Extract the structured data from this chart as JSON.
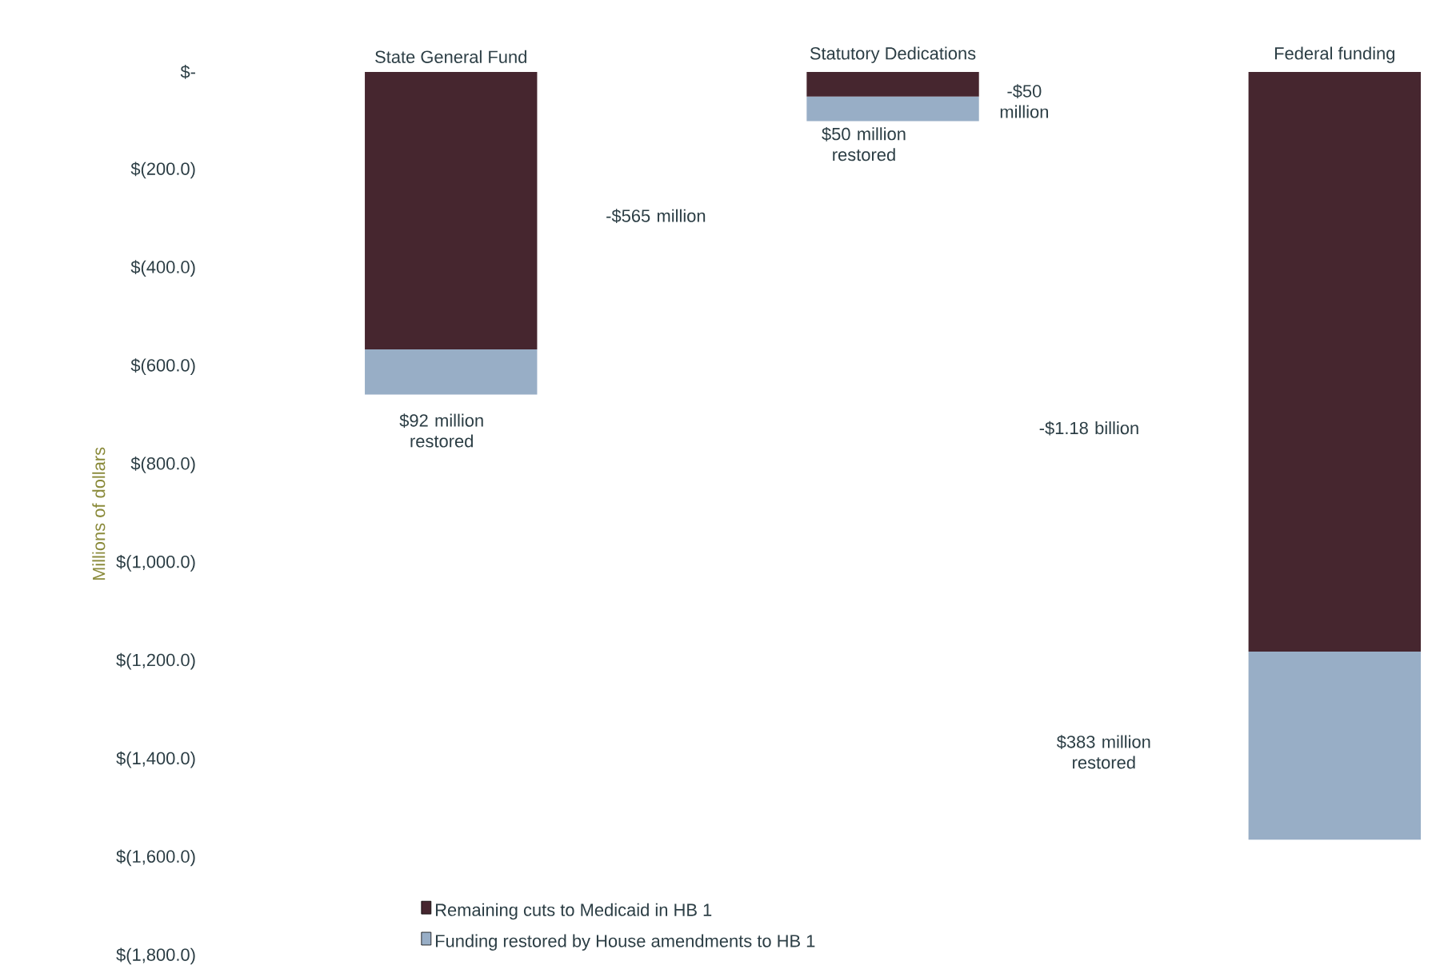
{
  "chart_data": {
    "type": "bar",
    "stacked": true,
    "ylabel": "Millions of dollars",
    "categories": [
      "State General Fund",
      "Statutory Dedications",
      "Federal funding"
    ],
    "series": [
      {
        "name": "Remaining cuts to Medicaid in HB 1",
        "color": "#46262f",
        "values": [
          -565,
          -50,
          -1180
        ]
      },
      {
        "name": "Funding restored by House amendments to HB 1",
        "color": "#98aec6",
        "values": [
          -92,
          -50,
          -383
        ]
      }
    ],
    "ylim": [
      -1800,
      0
    ],
    "yticks": [
      {
        "value": 0,
        "label": "$-"
      },
      {
        "value": -200,
        "label": "$(200.0)"
      },
      {
        "value": -400,
        "label": "$(400.0)"
      },
      {
        "value": -600,
        "label": "$(600.0)"
      },
      {
        "value": -800,
        "label": "$(800.0)"
      },
      {
        "value": -1000,
        "label": "$(1,000.0)"
      },
      {
        "value": -1200,
        "label": "$(1,200.0)"
      },
      {
        "value": -1400,
        "label": "$(1,400.0)"
      },
      {
        "value": -1600,
        "label": "$(1,600.0)"
      },
      {
        "value": -1800,
        "label": "$(1,800.0)"
      }
    ],
    "annotations": [
      "-$565 million",
      "$92 million restored",
      "-$50 million",
      "$50 million restored",
      "-$1.18 billion",
      "$383 million restored"
    ],
    "legend": "bottom",
    "grid": false
  }
}
